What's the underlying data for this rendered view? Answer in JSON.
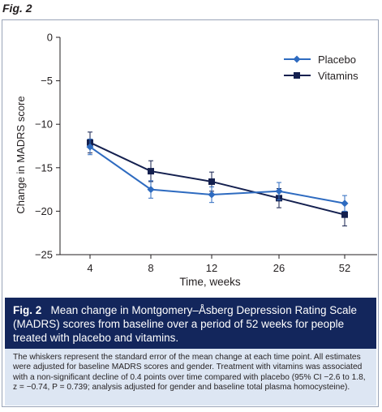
{
  "figure": {
    "label": "Fig. 2",
    "caption_label": "Fig. 2",
    "caption_text": "Mean change in Montgomery–Åsberg Depression Rating Scale (MADRS) scores from baseline over a period of 52 weeks for people treated with placebo and vitamins.",
    "note": "The whiskers represent the standard error of the mean change at each time point. All estimates were adjusted for baseline MADRS scores and gender. Treatment with vitamins was associated with a non-significant decline of 0.4 points over time compared with placebo (95% CI −2.6 to 1.8, z = −0.74, P = 0.739; analysis adjusted for gender and baseline total plasma homocysteine)."
  },
  "chart_data": {
    "type": "line",
    "title": "",
    "xlabel": "Time, weeks",
    "ylabel": "Change in MADRS score",
    "categories": [
      "4",
      "8",
      "12",
      "26",
      "52"
    ],
    "ylim": [
      -25,
      0
    ],
    "yticks": [
      0,
      -5,
      -10,
      -15,
      -20,
      -25
    ],
    "ytick_labels": [
      "0",
      "−5",
      "−10",
      "−15",
      "−20",
      "−25"
    ],
    "grid": false,
    "legend_position": "top-right",
    "series": [
      {
        "name": "Placebo",
        "color": "#2e6bc0",
        "marker": "diamond",
        "values": [
          -12.6,
          -17.5,
          -18.1,
          -17.7,
          -19.1
        ],
        "se": [
          0.9,
          1.0,
          0.9,
          1.0,
          0.9
        ]
      },
      {
        "name": "Vitamins",
        "color": "#14204f",
        "marker": "square",
        "values": [
          -12.1,
          -15.4,
          -16.6,
          -18.5,
          -20.4
        ],
        "se": [
          1.2,
          1.2,
          1.1,
          1.1,
          1.3
        ]
      }
    ]
  }
}
